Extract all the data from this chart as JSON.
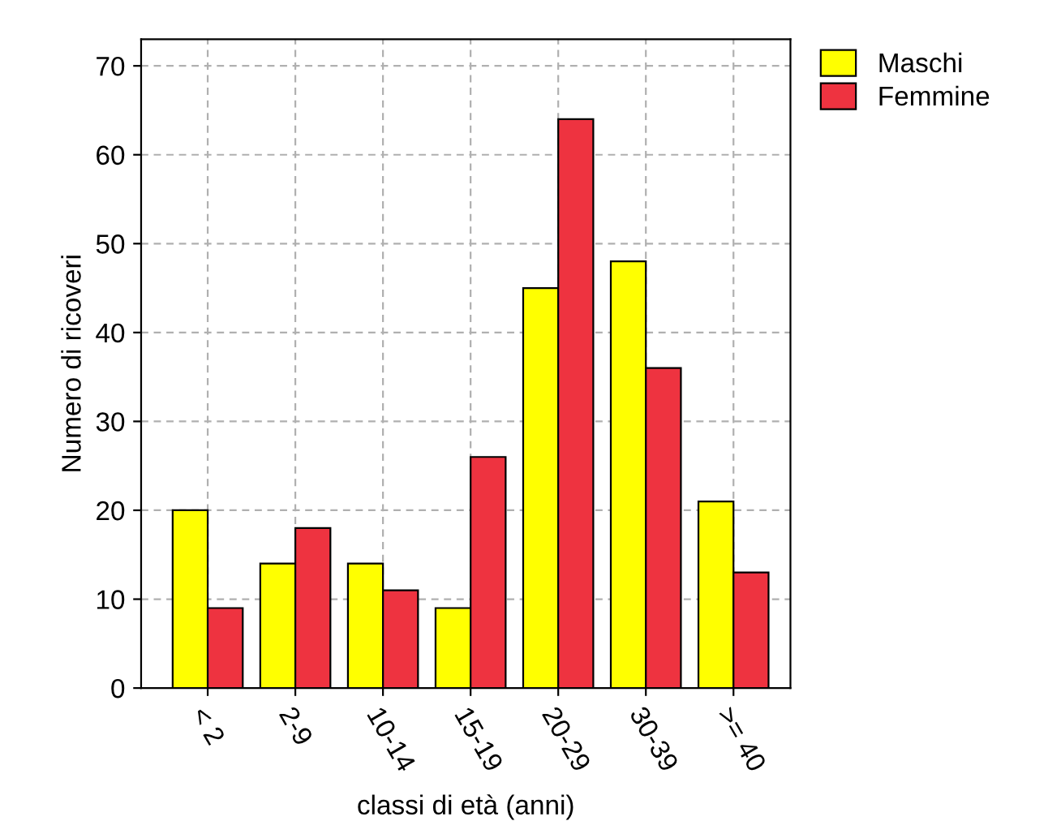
{
  "chart_data": {
    "type": "bar",
    "xlabel": "classi di età (anni)",
    "ylabel": "Numero di ricoveri",
    "categories": [
      "< 2",
      "2-9",
      "10-14",
      "15-19",
      "20-29",
      "30-39",
      ">= 40"
    ],
    "series": [
      {
        "name": "Maschi",
        "color": "#ffff00",
        "values": [
          20,
          14,
          14,
          9,
          45,
          48,
          21
        ]
      },
      {
        "name": "Femmine",
        "color": "#ee3340",
        "values": [
          9,
          18,
          11,
          26,
          64,
          36,
          13
        ]
      }
    ],
    "ylim": [
      0,
      73
    ],
    "yticks": [
      0,
      10,
      20,
      30,
      40,
      50,
      60,
      70
    ],
    "grid": true,
    "legend": "top right"
  }
}
